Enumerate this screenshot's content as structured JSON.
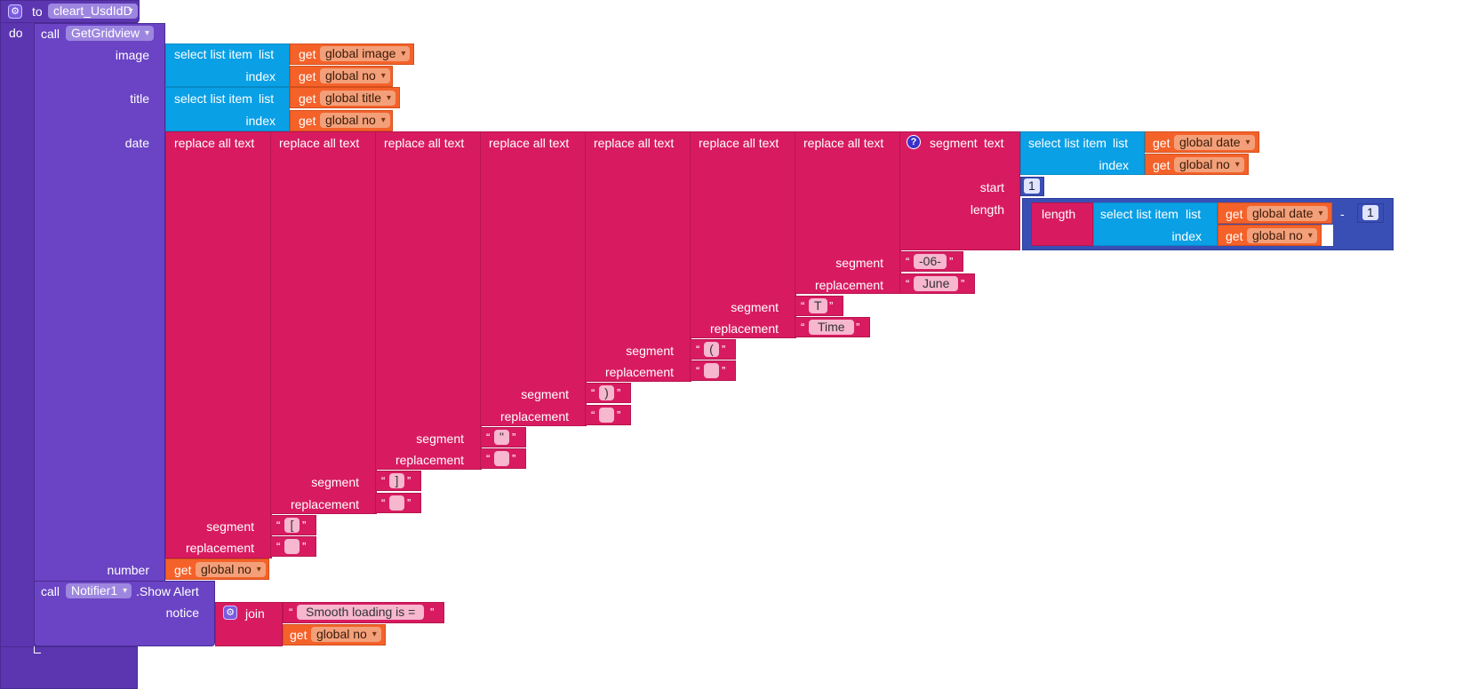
{
  "procedure": {
    "keyword_to": "to",
    "name": "cleart_UsdIdD",
    "keyword_do": "do"
  },
  "call_gridview": {
    "keyword_call": "call",
    "method": "GetGridview",
    "arg_image": "image",
    "arg_title": "title",
    "arg_date": "date",
    "arg_number": "number"
  },
  "select_list_item": {
    "label": "select list item",
    "list_label": "list",
    "index_label": "index"
  },
  "get_label": "get",
  "vars": {
    "image": "global image",
    "no": "global no",
    "title": "global title",
    "date": "global date"
  },
  "replace": {
    "label": "replace all text",
    "segment_label": "segment",
    "replacement_label": "replacement",
    "pairs": [
      {
        "segment": "[",
        "replacement": " "
      },
      {
        "segment": "]",
        "replacement": " "
      },
      {
        "segment": "\"",
        "replacement": " "
      },
      {
        "segment": ")",
        "replacement": " "
      },
      {
        "segment": "(",
        "replacement": " "
      },
      {
        "segment": "T",
        "replacement": "Time"
      },
      {
        "segment": "-06-",
        "replacement": "June"
      }
    ]
  },
  "segment_block": {
    "label": "segment",
    "text_label": "text",
    "start_label": "start",
    "length_label": "length",
    "start_value": "1"
  },
  "length_block": {
    "label": "length",
    "minus": "-",
    "subtract_value": "1"
  },
  "notifier": {
    "keyword_call": "call",
    "component": "Notifier1",
    "method": ".Show Alert",
    "arg_notice": "notice"
  },
  "join": {
    "label": "join",
    "text": "Smooth loading is  ="
  },
  "colors": {
    "procedure": "#5b36b0",
    "lists": "#0aa0e6",
    "variables": "#f4622a",
    "text": "#d81b60",
    "math": "#3a4fb5"
  }
}
